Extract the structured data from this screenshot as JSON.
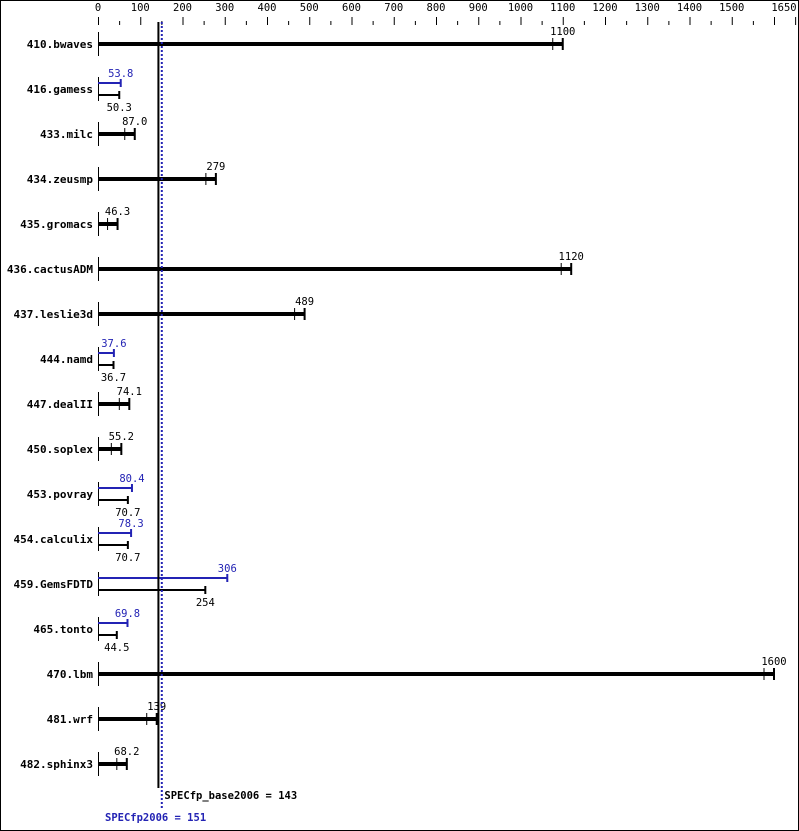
{
  "chart_data": {
    "type": "bar",
    "orientation": "horizontal",
    "xlim": [
      0,
      1650
    ],
    "x_ticks": [
      0,
      100,
      200,
      300,
      400,
      500,
      600,
      700,
      800,
      900,
      1000,
      1100,
      1200,
      1300,
      1400,
      1500,
      1650
    ],
    "grid": false,
    "colors": {
      "base": "#000000",
      "peak": "#2323b4"
    },
    "categories": [
      "410.bwaves",
      "416.gamess",
      "433.milc",
      "434.zeusmp",
      "435.gromacs",
      "436.cactusADM",
      "437.leslie3d",
      "444.namd",
      "447.dealII",
      "450.soplex",
      "453.povray",
      "454.calculix",
      "459.GemsFDTD",
      "465.tonto",
      "470.lbm",
      "481.wrf",
      "482.sphinx3"
    ],
    "series": [
      {
        "name": "base",
        "values": [
          1100,
          50.3,
          87.0,
          279,
          46.3,
          1120,
          489,
          36.7,
          74.1,
          55.2,
          70.7,
          70.7,
          254,
          44.5,
          1600,
          139,
          68.2
        ],
        "labels": [
          "1100",
          "50.3",
          "87.0",
          "279",
          "46.3",
          "1120",
          "489",
          "36.7",
          "74.1",
          "55.2",
          "70.7",
          "70.7",
          "254",
          "44.5",
          "1600",
          "139",
          "68.2"
        ]
      },
      {
        "name": "peak",
        "values": [
          null,
          53.8,
          null,
          null,
          null,
          null,
          null,
          37.6,
          null,
          null,
          80.4,
          78.3,
          306,
          69.8,
          null,
          null,
          null
        ],
        "labels": [
          null,
          "53.8",
          null,
          null,
          null,
          null,
          null,
          "37.6",
          null,
          null,
          "80.4",
          "78.3",
          "306",
          "69.8",
          null,
          null,
          null
        ]
      }
    ],
    "reference_lines": [
      {
        "name": "base",
        "value": 143,
        "label": "SPECfp_base2006 = 143"
      },
      {
        "name": "peak",
        "value": 151,
        "label": "SPECfp2006 = 151"
      }
    ]
  }
}
